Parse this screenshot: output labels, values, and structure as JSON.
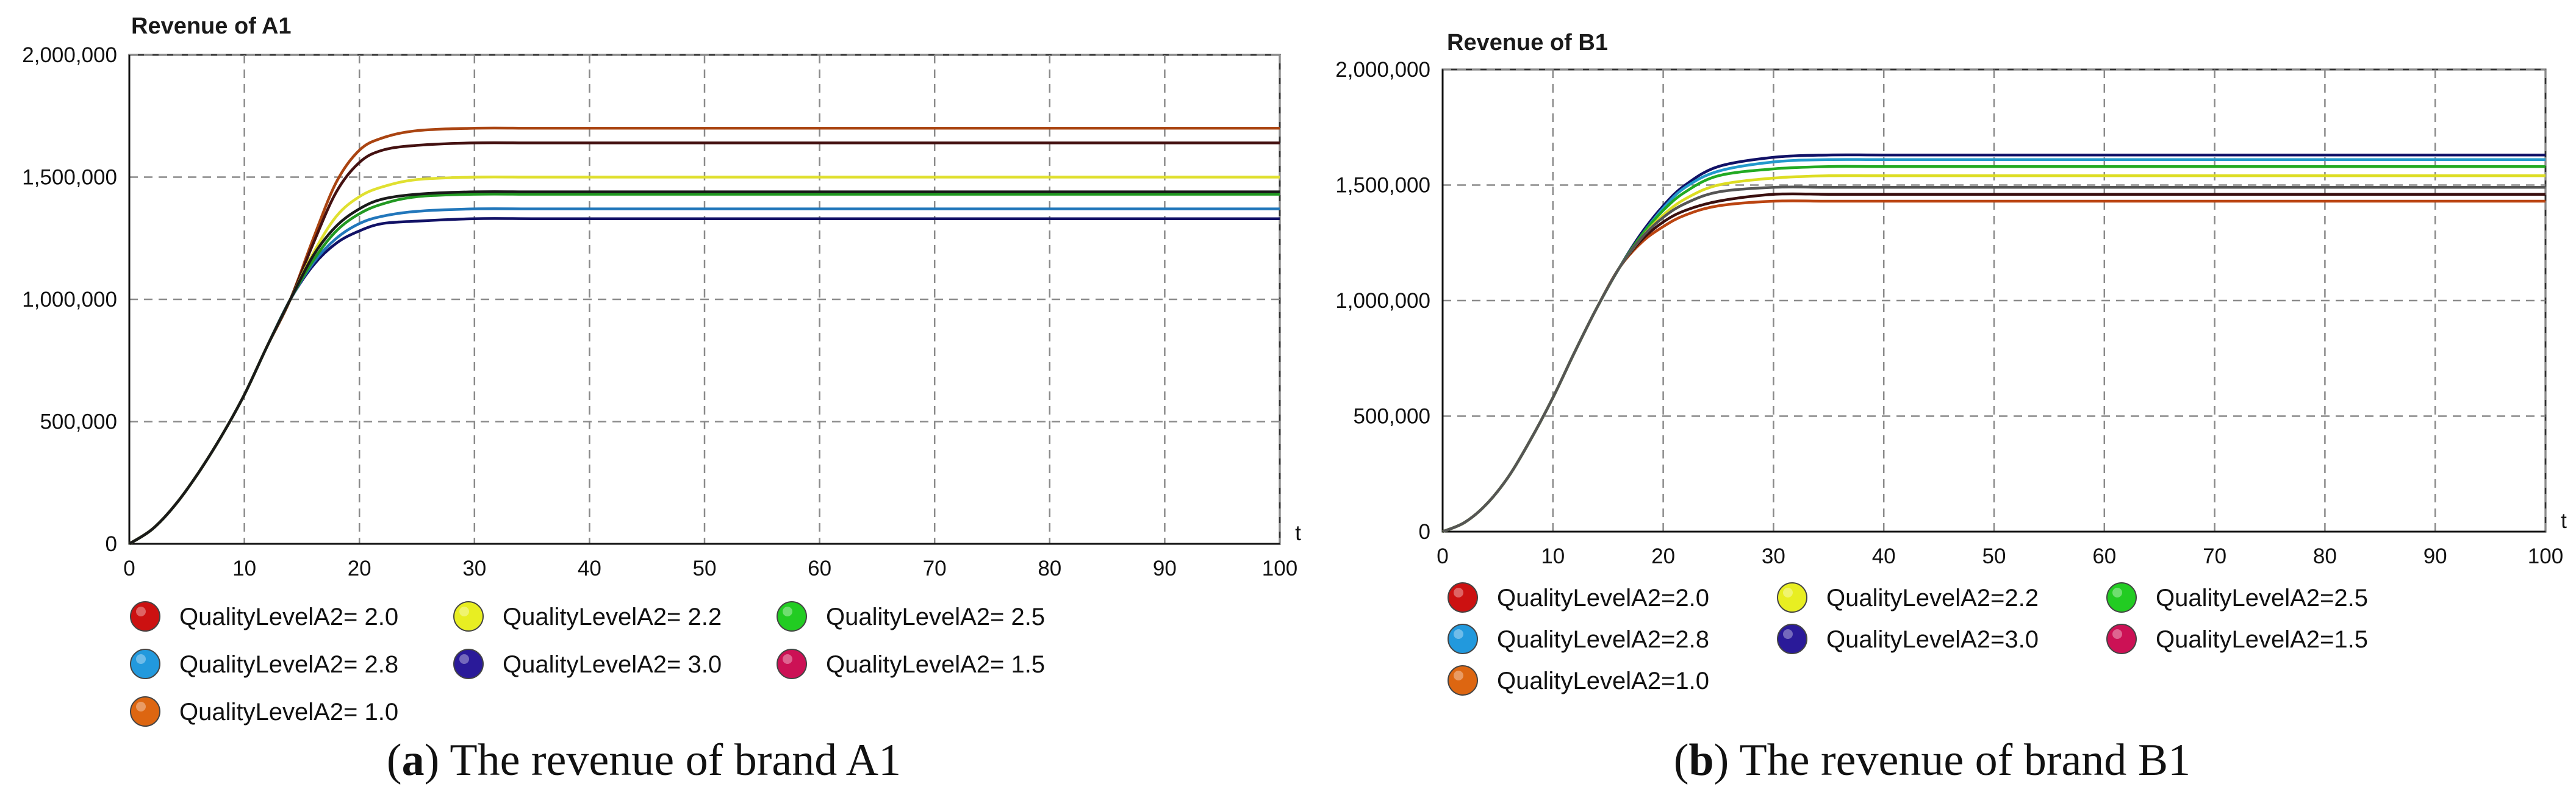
{
  "chart_data": [
    {
      "type": "line",
      "panel": "a",
      "title": "Revenue of A1",
      "xlabel": "t",
      "ylabel": "",
      "xlim": [
        0,
        100
      ],
      "ylim": [
        0,
        2000000
      ],
      "x_ticks": [
        0,
        10,
        20,
        30,
        40,
        50,
        60,
        70,
        80,
        90,
        100
      ],
      "y_ticks": [
        0,
        500000,
        1000000,
        1500000,
        2000000
      ],
      "y_tick_labels": [
        "0",
        "500,000",
        "1,000,000",
        "1,500,000",
        "2,000,000"
      ],
      "grid": true,
      "legend_position": "bottom",
      "x": [
        0,
        2,
        4,
        6,
        8,
        10,
        12,
        14,
        16,
        18,
        20,
        22,
        25,
        30,
        35,
        40,
        50,
        60,
        70,
        80,
        90,
        100
      ],
      "series": [
        {
          "name": "QualityLevelA2= 2.0",
          "values": [
            0,
            60000,
            160000,
            290000,
            440000,
            610000,
            810000,
            1000000,
            1180000,
            1300000,
            1370000,
            1410000,
            1430000,
            1440000,
            1440000,
            1440000,
            1440000,
            1440000,
            1440000,
            1440000,
            1440000,
            1440000
          ]
        },
        {
          "name": "QualityLevelA2= 2.2",
          "values": [
            0,
            60000,
            160000,
            290000,
            440000,
            610000,
            810000,
            1000000,
            1190000,
            1340000,
            1420000,
            1460000,
            1490000,
            1500000,
            1500000,
            1500000,
            1500000,
            1500000,
            1500000,
            1500000,
            1500000,
            1500000
          ]
        },
        {
          "name": "QualityLevelA2= 2.5",
          "values": [
            0,
            60000,
            160000,
            290000,
            440000,
            610000,
            810000,
            1000000,
            1160000,
            1280000,
            1350000,
            1390000,
            1420000,
            1430000,
            1430000,
            1430000,
            1430000,
            1430000,
            1430000,
            1430000,
            1430000,
            1430000
          ]
        },
        {
          "name": "QualityLevelA2= 2.8",
          "values": [
            0,
            60000,
            160000,
            290000,
            440000,
            610000,
            810000,
            1000000,
            1150000,
            1250000,
            1310000,
            1340000,
            1360000,
            1370000,
            1370000,
            1370000,
            1370000,
            1370000,
            1370000,
            1370000,
            1370000,
            1370000
          ]
        },
        {
          "name": "QualityLevelA2= 3.0",
          "values": [
            0,
            60000,
            160000,
            290000,
            440000,
            610000,
            810000,
            1000000,
            1140000,
            1230000,
            1280000,
            1310000,
            1320000,
            1330000,
            1330000,
            1330000,
            1330000,
            1330000,
            1330000,
            1330000,
            1330000,
            1330000
          ]
        },
        {
          "name": "QualityLevelA2= 1.5",
          "values": [
            0,
            60000,
            160000,
            290000,
            440000,
            610000,
            810000,
            1000000,
            1230000,
            1440000,
            1560000,
            1610000,
            1630000,
            1640000,
            1640000,
            1640000,
            1640000,
            1640000,
            1640000,
            1640000,
            1640000,
            1640000
          ]
        },
        {
          "name": "QualityLevelA2= 1.0",
          "values": [
            0,
            60000,
            160000,
            290000,
            440000,
            610000,
            810000,
            1000000,
            1250000,
            1480000,
            1610000,
            1660000,
            1690000,
            1700000,
            1700000,
            1700000,
            1700000,
            1700000,
            1700000,
            1700000,
            1700000,
            1700000
          ]
        }
      ]
    },
    {
      "type": "line",
      "panel": "b",
      "title": "Revenue of B1",
      "xlabel": "t",
      "ylabel": "",
      "xlim": [
        0,
        100
      ],
      "ylim": [
        0,
        2000000
      ],
      "x_ticks": [
        0,
        10,
        20,
        30,
        40,
        50,
        60,
        70,
        80,
        90,
        100
      ],
      "y_ticks": [
        0,
        500000,
        1000000,
        1500000,
        2000000
      ],
      "y_tick_labels": [
        "0",
        "500,000",
        "1,000,000",
        "1,500,000",
        "2,000,000"
      ],
      "grid": true,
      "legend_position": "bottom",
      "x": [
        0,
        2,
        4,
        6,
        8,
        10,
        12,
        14,
        16,
        18,
        20,
        22,
        25,
        30,
        35,
        40,
        50,
        60,
        70,
        80,
        90,
        100
      ],
      "series": [
        {
          "name": "QualityLevelA2=2.0",
          "values": [
            0,
            40000,
            120000,
            240000,
            400000,
            580000,
            780000,
            970000,
            1140000,
            1270000,
            1360000,
            1420000,
            1470000,
            1490000,
            1490000,
            1490000,
            1490000,
            1490000,
            1490000,
            1490000,
            1490000,
            1490000
          ]
        },
        {
          "name": "QualityLevelA2=2.2",
          "values": [
            0,
            40000,
            120000,
            240000,
            400000,
            580000,
            780000,
            970000,
            1140000,
            1270000,
            1370000,
            1440000,
            1500000,
            1530000,
            1540000,
            1540000,
            1540000,
            1540000,
            1540000,
            1540000,
            1540000,
            1540000
          ]
        },
        {
          "name": "QualityLevelA2=2.5",
          "values": [
            0,
            40000,
            120000,
            240000,
            400000,
            580000,
            780000,
            970000,
            1140000,
            1280000,
            1390000,
            1470000,
            1540000,
            1570000,
            1580000,
            1580000,
            1580000,
            1580000,
            1580000,
            1580000,
            1580000,
            1580000
          ]
        },
        {
          "name": "QualityLevelA2=2.8",
          "values": [
            0,
            40000,
            120000,
            240000,
            400000,
            580000,
            780000,
            970000,
            1140000,
            1280000,
            1400000,
            1490000,
            1560000,
            1600000,
            1610000,
            1610000,
            1610000,
            1610000,
            1610000,
            1610000,
            1610000,
            1610000
          ]
        },
        {
          "name": "QualityLevelA2=3.0",
          "values": [
            0,
            40000,
            120000,
            240000,
            400000,
            580000,
            780000,
            970000,
            1140000,
            1290000,
            1410000,
            1500000,
            1580000,
            1620000,
            1630000,
            1630000,
            1630000,
            1630000,
            1630000,
            1630000,
            1630000,
            1630000
          ]
        },
        {
          "name": "QualityLevelA2=1.5",
          "values": [
            0,
            40000,
            120000,
            240000,
            400000,
            580000,
            780000,
            970000,
            1140000,
            1260000,
            1340000,
            1390000,
            1430000,
            1460000,
            1460000,
            1460000,
            1460000,
            1460000,
            1460000,
            1460000,
            1460000,
            1460000
          ]
        },
        {
          "name": "QualityLevelA2=1.0",
          "values": [
            0,
            40000,
            120000,
            240000,
            400000,
            580000,
            780000,
            970000,
            1140000,
            1250000,
            1320000,
            1370000,
            1410000,
            1430000,
            1430000,
            1430000,
            1430000,
            1430000,
            1430000,
            1430000,
            1430000,
            1430000
          ]
        }
      ]
    }
  ],
  "legend_markers": [
    {
      "series_index": 0,
      "color": "#cc1111"
    },
    {
      "series_index": 1,
      "color": "#e8ee22"
    },
    {
      "series_index": 2,
      "color": "#22cc22"
    },
    {
      "series_index": 3,
      "color": "#2299dd"
    },
    {
      "series_index": 4,
      "color": "#2a1a99"
    },
    {
      "series_index": 5,
      "color": "#cc1155"
    },
    {
      "series_index": 6,
      "color": "#dd6611"
    }
  ],
  "line_colors": {
    "a": [
      "#1a1a1a",
      "#e0e030",
      "#229922",
      "#2277bb",
      "#111166",
      "#441111",
      "#aa4411"
    ],
    "b": [
      "#555555",
      "#dddd22",
      "#22aa22",
      "#2299cc",
      "#111166",
      "#3a0f0f",
      "#bb4411"
    ]
  },
  "captions": {
    "a": {
      "letter": "a",
      "text": ") The revenue of brand A1"
    },
    "b": {
      "letter": "b",
      "text": ") The revenue of brand B1"
    }
  }
}
